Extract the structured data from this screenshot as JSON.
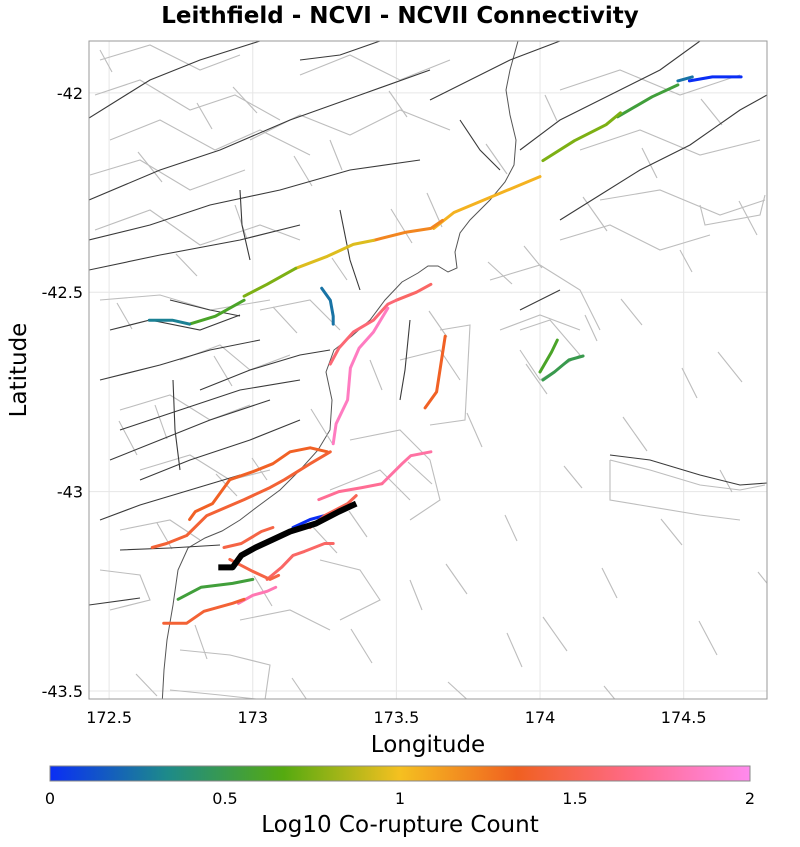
{
  "title": "Leithfield - NCVI - NCVII Connectivity",
  "xlabel": "Longitude",
  "ylabel": "Latitude",
  "x_ticks": [
    "172.5",
    "173",
    "173.5",
    "174",
    "174.5"
  ],
  "y_ticks": [
    "-42",
    "-42.5",
    "-43",
    "-43.5"
  ],
  "colorbar": {
    "label": "Log10 Co-rupture Count",
    "ticks": [
      "0",
      "0.5",
      "1",
      "1.5",
      "2"
    ],
    "range": [
      0,
      2
    ],
    "stops": [
      "#0a2ef5",
      "#1d8a8a",
      "#55aa10",
      "#f5c020",
      "#f06020",
      "#ff6a8a",
      "#ff8aee"
    ]
  },
  "chart_data": {
    "type": "map",
    "title": "Leithfield - NCVI - NCVII Connectivity",
    "xlabel": "Longitude",
    "ylabel": "Latitude",
    "xlim": [
      172.43,
      174.79
    ],
    "ylim": [
      -43.52,
      -41.87
    ],
    "grid": true,
    "source_fault": {
      "name": "Leithfield",
      "color": "#000000",
      "path": [
        [
          172.88,
          -43.19
        ],
        [
          172.93,
          -43.19
        ],
        [
          172.96,
          -43.16
        ],
        [
          173.01,
          -43.14
        ],
        [
          173.07,
          -43.12
        ],
        [
          173.13,
          -43.1
        ],
        [
          173.22,
          -43.08
        ],
        [
          173.3,
          -43.05
        ],
        [
          173.36,
          -43.03
        ]
      ]
    },
    "series": [
      {
        "log10_count": 0.0,
        "path": [
          [
            174.52,
            -41.97
          ],
          [
            174.6,
            -41.96
          ],
          [
            174.7,
            -41.96
          ]
        ]
      },
      {
        "log10_count": 0.25,
        "path": [
          [
            174.48,
            -41.97
          ],
          [
            174.53,
            -41.96
          ]
        ]
      },
      {
        "log10_count": 0.55,
        "path": [
          [
            174.27,
            -42.06
          ],
          [
            174.39,
            -42.01
          ],
          [
            174.48,
            -41.98
          ]
        ]
      },
      {
        "log10_count": 0.75,
        "path": [
          [
            174.01,
            -42.17
          ],
          [
            174.12,
            -42.12
          ],
          [
            174.23,
            -42.08
          ],
          [
            174.28,
            -42.05
          ]
        ]
      },
      {
        "log10_count": 1.05,
        "path": [
          [
            173.63,
            -42.34
          ],
          [
            173.7,
            -42.3
          ],
          [
            173.8,
            -42.27
          ],
          [
            173.9,
            -42.24
          ],
          [
            174.0,
            -42.21
          ]
        ]
      },
      {
        "log10_count": 1.2,
        "path": [
          [
            173.42,
            -42.37
          ],
          [
            173.53,
            -42.35
          ],
          [
            173.62,
            -42.34
          ],
          [
            173.66,
            -42.32
          ]
        ]
      },
      {
        "log10_count": 0.95,
        "path": [
          [
            173.15,
            -42.44
          ],
          [
            173.26,
            -42.41
          ],
          [
            173.35,
            -42.38
          ],
          [
            173.42,
            -42.37
          ]
        ]
      },
      {
        "log10_count": 0.75,
        "path": [
          [
            172.97,
            -42.51
          ],
          [
            173.05,
            -42.48
          ],
          [
            173.15,
            -42.44
          ]
        ]
      },
      {
        "log10_count": 0.6,
        "path": [
          [
            172.78,
            -42.58
          ],
          [
            172.87,
            -42.56
          ],
          [
            172.97,
            -42.52
          ]
        ]
      },
      {
        "log10_count": 0.3,
        "path": [
          [
            172.64,
            -42.57
          ],
          [
            172.72,
            -42.57
          ],
          [
            172.78,
            -42.58
          ]
        ]
      },
      {
        "log10_count": 0.25,
        "path": [
          [
            173.24,
            -42.49
          ],
          [
            173.27,
            -42.52
          ],
          [
            173.28,
            -42.56
          ],
          [
            173.28,
            -42.58
          ]
        ]
      },
      {
        "log10_count": 1.55,
        "path": [
          [
            173.5,
            -42.52
          ],
          [
            173.57,
            -42.5
          ],
          [
            173.62,
            -42.48
          ]
        ]
      },
      {
        "log10_count": 1.6,
        "path": [
          [
            173.27,
            -42.68
          ],
          [
            173.3,
            -42.64
          ],
          [
            173.35,
            -42.6
          ],
          [
            173.42,
            -42.57
          ],
          [
            173.47,
            -42.53
          ],
          [
            173.5,
            -42.52
          ]
        ]
      },
      {
        "log10_count": 1.85,
        "path": [
          [
            173.28,
            -42.88
          ],
          [
            173.29,
            -42.83
          ],
          [
            173.33,
            -42.77
          ],
          [
            173.34,
            -42.69
          ],
          [
            173.37,
            -42.64
          ],
          [
            173.42,
            -42.6
          ],
          [
            173.47,
            -42.54
          ]
        ]
      },
      {
        "log10_count": 1.35,
        "path": [
          [
            173.6,
            -42.79
          ],
          [
            173.64,
            -42.75
          ],
          [
            173.67,
            -42.61
          ]
        ]
      },
      {
        "log10_count": 0.6,
        "path": [
          [
            174.0,
            -42.7
          ],
          [
            174.04,
            -42.65
          ],
          [
            174.06,
            -42.62
          ]
        ]
      },
      {
        "log10_count": 0.5,
        "path": [
          [
            174.01,
            -42.72
          ],
          [
            174.05,
            -42.7
          ],
          [
            174.1,
            -42.67
          ],
          [
            174.15,
            -42.66
          ]
        ]
      },
      {
        "log10_count": 1.75,
        "path": [
          [
            173.45,
            -42.98
          ],
          [
            173.52,
            -42.93
          ],
          [
            173.55,
            -42.91
          ],
          [
            173.62,
            -42.9
          ]
        ]
      },
      {
        "log10_count": 1.7,
        "path": [
          [
            173.23,
            -43.02
          ],
          [
            173.3,
            -43.0
          ],
          [
            173.38,
            -42.99
          ],
          [
            173.45,
            -42.98
          ]
        ]
      },
      {
        "log10_count": 1.35,
        "path": [
          [
            173.26,
            -42.9
          ],
          [
            173.2,
            -42.89
          ],
          [
            173.13,
            -42.9
          ],
          [
            173.07,
            -42.93
          ],
          [
            173.0,
            -42.95
          ],
          [
            172.92,
            -42.97
          ],
          [
            172.86,
            -43.03
          ],
          [
            172.8,
            -43.05
          ],
          [
            172.78,
            -43.07
          ]
        ]
      },
      {
        "log10_count": 1.4,
        "path": [
          [
            173.27,
            -42.9
          ],
          [
            173.2,
            -42.93
          ],
          [
            173.11,
            -42.97
          ],
          [
            173.06,
            -42.99
          ],
          [
            172.97,
            -43.02
          ],
          [
            172.84,
            -43.06
          ],
          [
            172.77,
            -43.11
          ],
          [
            172.7,
            -43.13
          ],
          [
            172.65,
            -43.14
          ]
        ]
      },
      {
        "log10_count": 1.45,
        "path": [
          [
            172.9,
            -43.14
          ],
          [
            172.96,
            -43.13
          ],
          [
            173.03,
            -43.1
          ],
          [
            173.07,
            -43.09
          ]
        ]
      },
      {
        "log10_count": 0.0,
        "path": [
          [
            173.14,
            -43.09
          ],
          [
            173.2,
            -43.07
          ],
          [
            173.25,
            -43.06
          ]
        ]
      },
      {
        "log10_count": 1.5,
        "path": [
          [
            173.2,
            -43.09
          ],
          [
            173.25,
            -43.06
          ],
          [
            173.33,
            -43.03
          ],
          [
            173.36,
            -43.01
          ]
        ]
      },
      {
        "log10_count": 1.55,
        "path": [
          [
            173.05,
            -43.22
          ],
          [
            173.1,
            -43.19
          ],
          [
            173.14,
            -43.16
          ],
          [
            173.18,
            -43.15
          ],
          [
            173.25,
            -43.13
          ],
          [
            173.28,
            -43.13
          ]
        ]
      },
      {
        "log10_count": 1.45,
        "path": [
          [
            172.92,
            -43.17
          ],
          [
            173.0,
            -43.2
          ],
          [
            173.06,
            -43.22
          ],
          [
            173.09,
            -43.21
          ]
        ]
      },
      {
        "log10_count": 1.8,
        "path": [
          [
            172.95,
            -43.28
          ],
          [
            173.0,
            -43.26
          ],
          [
            173.05,
            -43.25
          ],
          [
            173.08,
            -43.24
          ]
        ]
      },
      {
        "log10_count": 0.55,
        "path": [
          [
            172.74,
            -43.27
          ],
          [
            172.82,
            -43.24
          ],
          [
            172.93,
            -43.23
          ],
          [
            173.0,
            -43.22
          ]
        ]
      },
      {
        "log10_count": 1.4,
        "path": [
          [
            172.69,
            -43.33
          ],
          [
            172.77,
            -43.33
          ],
          [
            172.83,
            -43.3
          ],
          [
            172.93,
            -43.28
          ],
          [
            172.97,
            -43.27
          ]
        ]
      }
    ]
  }
}
